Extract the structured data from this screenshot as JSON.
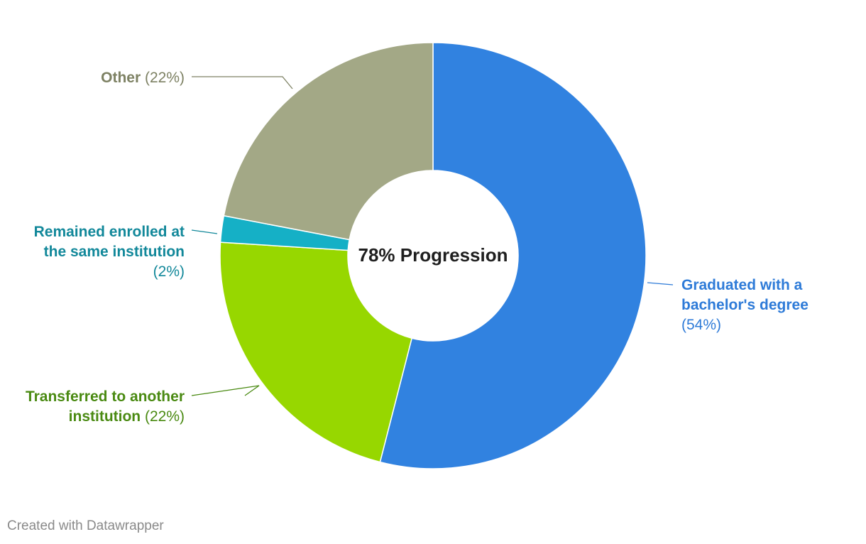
{
  "chart_data": {
    "type": "pie",
    "variant": "donut",
    "center_label": "78% Progression",
    "slices": [
      {
        "name": "Graduated with a bachelor's degree",
        "value": 54,
        "value_label": "(54%)",
        "color": "#3182e0",
        "label_color": "#2e7bd8",
        "label_lines": [
          "Graduated with a",
          "bachelor's degree"
        ],
        "value_inline": false,
        "label_side": "right"
      },
      {
        "name": "Transferred to another institution",
        "value": 22,
        "value_label": "(22%)",
        "color": "#97d700",
        "label_color": "#4a8a12",
        "label_lines": [
          "Transferred to another",
          "institution"
        ],
        "value_inline": true,
        "label_side": "left"
      },
      {
        "name": "Remained enrolled at the same institution",
        "value": 2,
        "value_label": "(2%)",
        "color": "#15b0c6",
        "label_color": "#12889a",
        "label_lines": [
          "Remained enrolled at",
          "the same institution"
        ],
        "value_inline": false,
        "label_side": "left"
      },
      {
        "name": "Other",
        "value": 22,
        "value_label": "(22%)",
        "color": "#a3a886",
        "label_color": "#7d8163",
        "label_lines": [
          "Other"
        ],
        "value_inline": true,
        "label_side": "left"
      }
    ]
  },
  "footer": {
    "credit": "Created with Datawrapper"
  }
}
